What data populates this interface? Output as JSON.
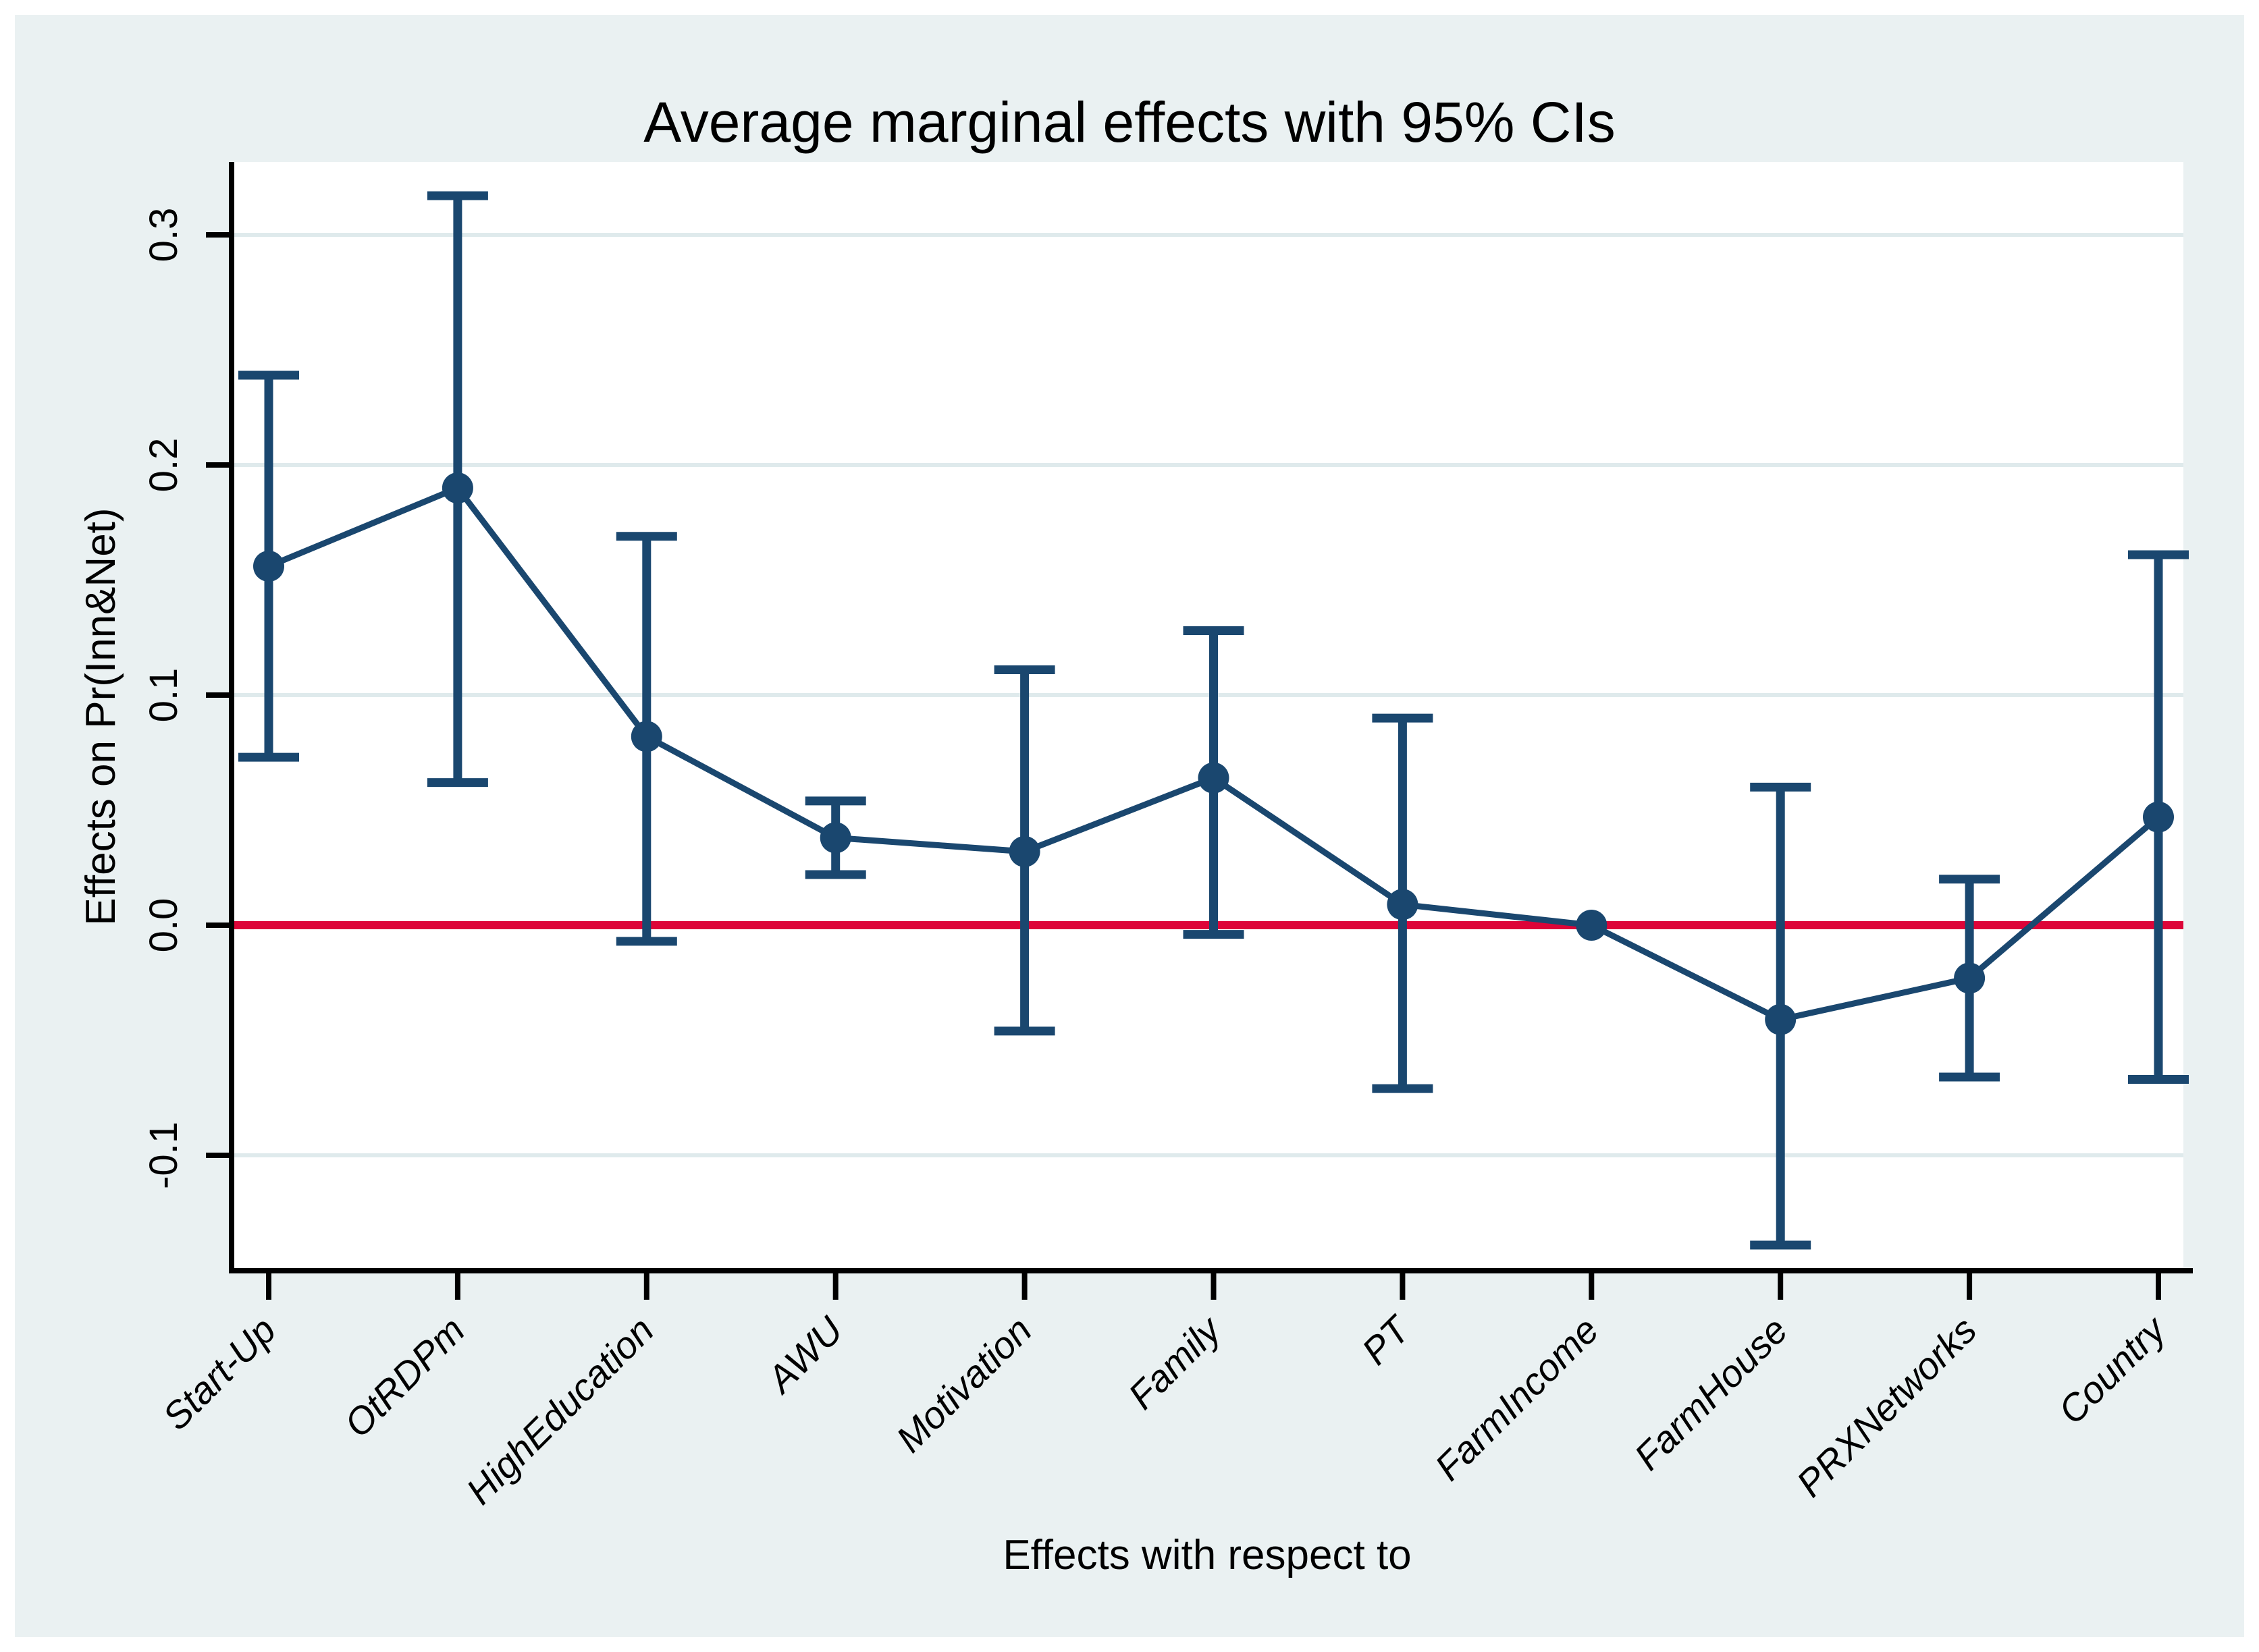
{
  "chart_data": {
    "type": "line",
    "subtype": "point-estimates-with-error-bars",
    "title": "Average marginal effects with 95% CIs",
    "xlabel": "Effects with respect to",
    "ylabel": "Effects on Pr(Inn&Net)",
    "categories": [
      "Start-Up",
      "OtRDPm",
      "HighEducation",
      "AWU",
      "Motivation",
      "Family",
      "PT",
      "FarmIncome",
      "FarmHouse",
      "PRXNetworks",
      "Country"
    ],
    "series": [
      {
        "name": "Average marginal effect",
        "values": [
          0.156,
          0.19,
          0.082,
          0.038,
          0.032,
          0.064,
          0.009,
          0.0,
          -0.041,
          -0.023,
          0.047
        ],
        "ci_low": [
          0.073,
          0.062,
          -0.007,
          0.022,
          -0.046,
          -0.004,
          -0.071,
          -0.003,
          -0.139,
          -0.066,
          -0.067
        ],
        "ci_high": [
          0.239,
          0.317,
          0.169,
          0.054,
          0.111,
          0.128,
          0.09,
          0.003,
          0.06,
          0.02,
          0.161
        ]
      }
    ],
    "yticks": [
      {
        "value": 0.3,
        "label": "0.3"
      },
      {
        "value": 0.2,
        "label": "0.2"
      },
      {
        "value": 0.1,
        "label": "0.1"
      },
      {
        "value": 0.0,
        "label": "0.0"
      },
      {
        "value": -0.1,
        "label": "-0.1"
      }
    ],
    "ylim": [
      -0.15,
      0.332
    ],
    "zero_reference_line": 0.0,
    "grid": true,
    "legend_position": "none",
    "colors": {
      "accent_navy": "#1a476f",
      "title_navy": "#13395e",
      "zero_line_red": "#dd0438",
      "canvas_background": "#eaf1f2",
      "plot_background": "#ffffff",
      "gridline": "#dfeaec",
      "axis_black": "#000000"
    }
  }
}
